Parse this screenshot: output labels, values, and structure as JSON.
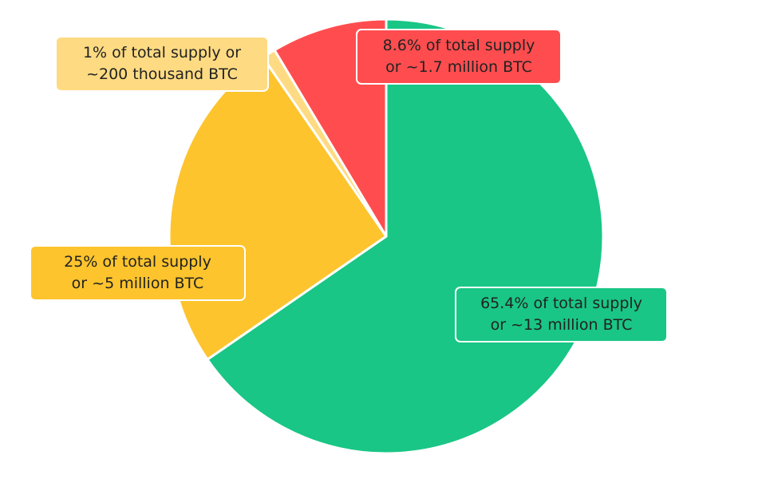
{
  "chart_data": {
    "type": "pie",
    "start": "top",
    "direction": "clockwise",
    "slices": [
      {
        "value": 65.4,
        "color": "#19C685",
        "label": [
          "65.4% of total supply",
          "or ~13 million BTC"
        ]
      },
      {
        "value": 25,
        "color": "#FDC42D",
        "label": [
          "25% of total supply",
          "or ~5 million BTC"
        ]
      },
      {
        "value": 1,
        "color": "#FEDB82",
        "label": [
          "1% of total supply or",
          "~200 thousand BTC"
        ]
      },
      {
        "value": 8.6,
        "color": "#FF4D4F",
        "label": [
          "8.6% of total supply",
          "or ~1.7 million BTC"
        ]
      }
    ]
  }
}
